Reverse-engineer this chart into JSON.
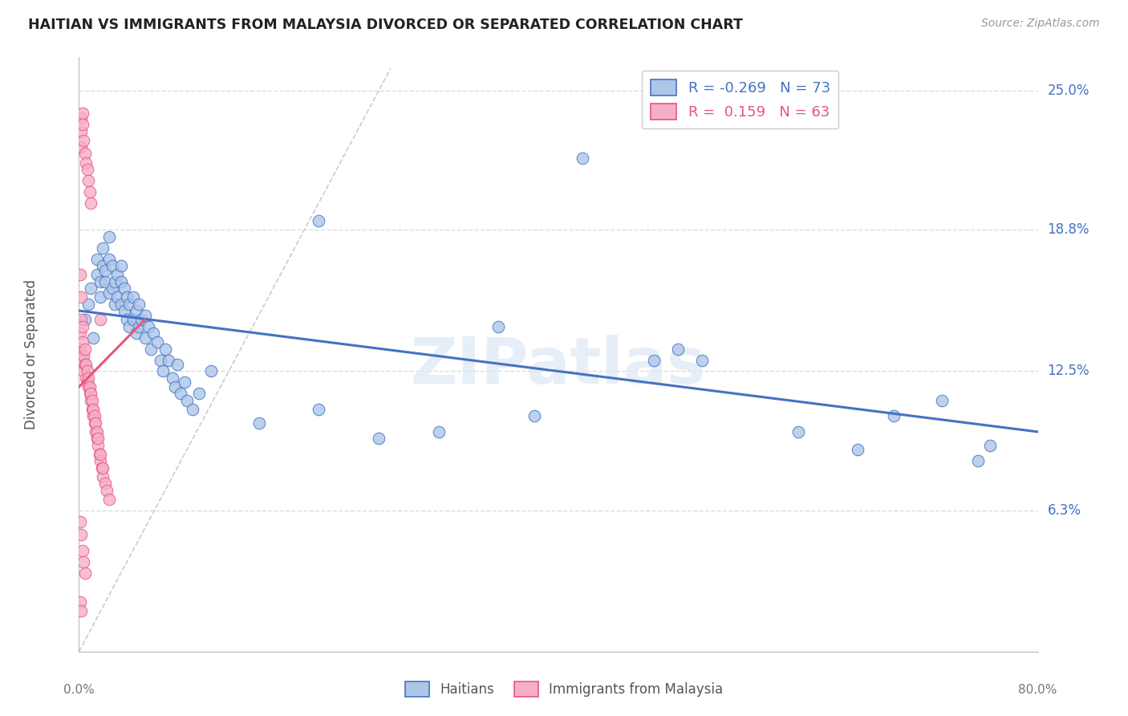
{
  "title": "HAITIAN VS IMMIGRANTS FROM MALAYSIA DIVORCED OR SEPARATED CORRELATION CHART",
  "source": "Source: ZipAtlas.com",
  "ylabel": "Divorced or Separated",
  "yticks": [
    0.0,
    0.063,
    0.125,
    0.188,
    0.25
  ],
  "ytick_labels": [
    "",
    "6.3%",
    "12.5%",
    "18.8%",
    "25.0%"
  ],
  "xmin": 0.0,
  "xmax": 0.8,
  "ymin": 0.0,
  "ymax": 0.265,
  "blue_R": -0.269,
  "blue_N": 73,
  "pink_R": 0.159,
  "pink_N": 63,
  "blue_color": "#adc6e8",
  "pink_color": "#f5afc8",
  "blue_line_color": "#4472c4",
  "pink_line_color": "#e8567a",
  "diagonal_color": "#cccccc",
  "watermark": "ZIPatlas",
  "legend_blue_label": "Haitians",
  "legend_pink_label": "Immigrants from Malaysia",
  "blue_trend_x0": 0.0,
  "blue_trend_x1": 0.8,
  "blue_trend_y0": 0.152,
  "blue_trend_y1": 0.098,
  "pink_trend_x0": 0.0,
  "pink_trend_x1": 0.055,
  "pink_trend_y0": 0.118,
  "pink_trend_y1": 0.148,
  "blue_scatter_x": [
    0.005,
    0.008,
    0.01,
    0.012,
    0.015,
    0.015,
    0.018,
    0.018,
    0.02,
    0.02,
    0.022,
    0.022,
    0.025,
    0.025,
    0.025,
    0.028,
    0.028,
    0.03,
    0.03,
    0.032,
    0.032,
    0.035,
    0.035,
    0.035,
    0.038,
    0.038,
    0.04,
    0.04,
    0.042,
    0.042,
    0.045,
    0.045,
    0.048,
    0.048,
    0.05,
    0.05,
    0.052,
    0.055,
    0.055,
    0.058,
    0.06,
    0.062,
    0.065,
    0.068,
    0.07,
    0.072,
    0.075,
    0.078,
    0.08,
    0.082,
    0.085,
    0.088,
    0.09,
    0.095,
    0.1,
    0.11,
    0.15,
    0.2,
    0.25,
    0.3,
    0.38,
    0.42,
    0.5,
    0.52,
    0.6,
    0.65,
    0.68,
    0.72,
    0.75,
    0.76,
    0.2,
    0.35,
    0.48
  ],
  "blue_scatter_y": [
    0.148,
    0.155,
    0.162,
    0.14,
    0.168,
    0.175,
    0.165,
    0.158,
    0.172,
    0.18,
    0.165,
    0.17,
    0.16,
    0.175,
    0.185,
    0.162,
    0.172,
    0.155,
    0.165,
    0.168,
    0.158,
    0.155,
    0.165,
    0.172,
    0.152,
    0.162,
    0.148,
    0.158,
    0.155,
    0.145,
    0.148,
    0.158,
    0.142,
    0.152,
    0.145,
    0.155,
    0.148,
    0.14,
    0.15,
    0.145,
    0.135,
    0.142,
    0.138,
    0.13,
    0.125,
    0.135,
    0.13,
    0.122,
    0.118,
    0.128,
    0.115,
    0.12,
    0.112,
    0.108,
    0.115,
    0.125,
    0.102,
    0.108,
    0.095,
    0.098,
    0.105,
    0.22,
    0.135,
    0.13,
    0.098,
    0.09,
    0.105,
    0.112,
    0.085,
    0.092,
    0.192,
    0.145,
    0.13
  ],
  "pink_scatter_x": [
    0.001,
    0.001,
    0.002,
    0.002,
    0.002,
    0.002,
    0.003,
    0.003,
    0.003,
    0.003,
    0.004,
    0.004,
    0.004,
    0.005,
    0.005,
    0.005,
    0.006,
    0.006,
    0.006,
    0.007,
    0.007,
    0.007,
    0.008,
    0.008,
    0.008,
    0.009,
    0.009,
    0.009,
    0.01,
    0.01,
    0.01,
    0.011,
    0.011,
    0.012,
    0.012,
    0.013,
    0.013,
    0.014,
    0.014,
    0.015,
    0.015,
    0.016,
    0.016,
    0.017,
    0.018,
    0.018,
    0.019,
    0.02,
    0.02,
    0.022,
    0.023,
    0.025,
    0.001,
    0.002,
    0.003,
    0.004,
    0.005,
    0.001,
    0.002,
    0.001,
    0.002,
    0.003,
    0.018
  ],
  "pink_scatter_y": [
    0.135,
    0.142,
    0.238,
    0.232,
    0.225,
    0.148,
    0.24,
    0.235,
    0.13,
    0.138,
    0.228,
    0.132,
    0.125,
    0.222,
    0.128,
    0.135,
    0.218,
    0.122,
    0.128,
    0.215,
    0.12,
    0.125,
    0.21,
    0.118,
    0.122,
    0.205,
    0.115,
    0.118,
    0.2,
    0.112,
    0.115,
    0.108,
    0.112,
    0.105,
    0.108,
    0.102,
    0.105,
    0.098,
    0.102,
    0.095,
    0.098,
    0.092,
    0.095,
    0.088,
    0.085,
    0.088,
    0.082,
    0.078,
    0.082,
    0.075,
    0.072,
    0.068,
    0.058,
    0.052,
    0.045,
    0.04,
    0.035,
    0.022,
    0.018,
    0.168,
    0.158,
    0.145,
    0.148
  ],
  "grid_color": "#dddddd",
  "background_color": "#ffffff"
}
